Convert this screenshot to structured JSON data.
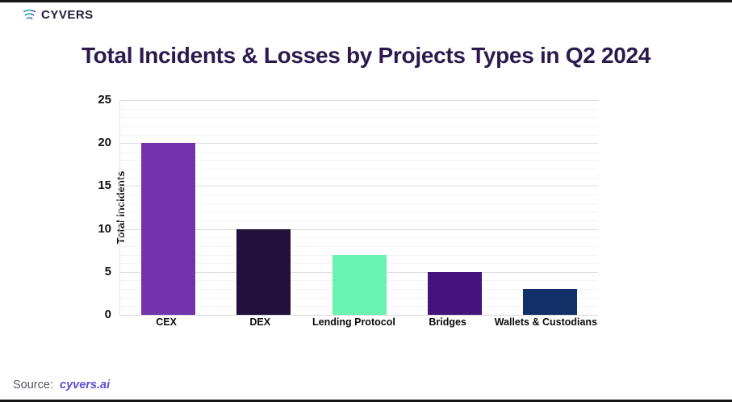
{
  "header": {
    "brand": "CYVERS",
    "title": "Total Incidents & Losses by Projects Types in Q2 2024"
  },
  "chart_data": {
    "type": "bar",
    "title": "Total Incidents & Losses by Projects Types in Q2 2024",
    "categories": [
      "CEX",
      "DEX",
      "Lending Protocol",
      "Bridges",
      "Wallets & Custodians"
    ],
    "values": [
      20,
      10,
      7,
      5,
      3
    ],
    "bar_colors": [
      "#7233AB",
      "#21103A",
      "#69F2B0",
      "#45137D",
      "#122F68"
    ],
    "xlabel": "",
    "ylabel": "Total incidents",
    "ylim": [
      0,
      25
    ],
    "ytick_interval": 5,
    "minor_tick_interval": 1,
    "yticks": [
      0,
      5,
      10,
      15,
      20,
      25
    ],
    "grid": true,
    "legend": false
  },
  "footer": {
    "source_label": "Source:",
    "source_link": "cyvers.ai"
  },
  "colors": {
    "title_text": "#2B1B4D",
    "axis_text": "#111111",
    "gridline_major": "#DCDCDC",
    "gridline_minor": "#F3F3F3",
    "source_text": "#55555E",
    "link": "#5A4FD2",
    "logo_text": "#211B3A",
    "edge_strip": "#161616"
  }
}
